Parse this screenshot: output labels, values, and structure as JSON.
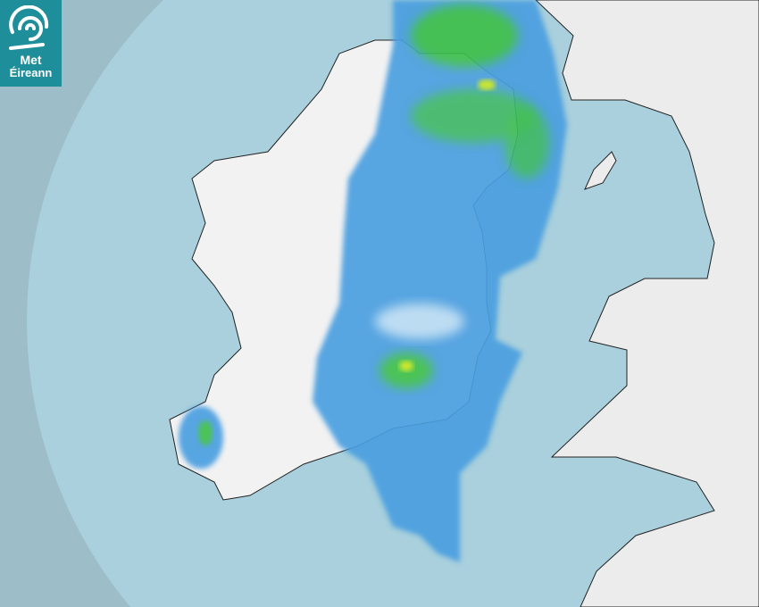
{
  "map": {
    "type": "weather radar",
    "colors": {
      "outside_coverage": "#9dbec8",
      "sea": "#a9d0dc",
      "land": "#f2f2f2",
      "rain_light": "#4a9ee0",
      "rain_moderate": "#7cc3f0",
      "rain_heavy": "#3cbf4a",
      "rain_very_heavy": "#c8e61e"
    }
  },
  "logo": {
    "line1": "Met",
    "line2": "Éireann",
    "icon": "swirl-logo-icon",
    "color": "#1e8f9a"
  }
}
